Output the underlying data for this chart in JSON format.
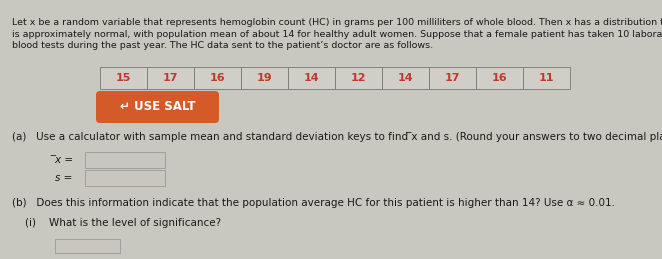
{
  "background_color": "#c8c8c0",
  "panel_color": "#d8d6ce",
  "text_color": "#1a1a1a",
  "paragraph_line1": "Let x be a random variable that represents hemoglobin count (HC) in grams per 100 milliliters of whole blood. Then x has a distribution that",
  "paragraph_line2": "is approximately normal, with population mean of about 14 for healthy adult women. Suppose that a female patient has taken 10 laboratory",
  "paragraph_line3": "blood tests during the past year. The HC data sent to the patient’s doctor are as follows.",
  "data_values": [
    "15",
    "17",
    "16",
    "19",
    "14",
    "12",
    "14",
    "17",
    "16",
    "11"
  ],
  "cell_color": "#d0cec6",
  "cell_border": "#777777",
  "data_text_color": "#c0392b",
  "use_salt_label": "↵ USE SALT",
  "use_salt_bg": "#d45a2a",
  "use_salt_text_color": "#ffffff",
  "part_a_text": "(a)   Use a calculator with sample mean and standard deviation keys to find ̅x and s. (Round your answers to two decimal places.)",
  "xbar_label": "̅x =",
  "s_label": "s =",
  "part_b_text": "(b)   Does this information indicate that the population average HC for this patient is higher than 14? Use α ≈ 0.01.",
  "part_i_text": "(i)    What is the level of significance?",
  "input_box_color": "#c8c6be",
  "input_box_border": "#999999",
  "font_size_para": 6.8,
  "font_size_data": 8.0,
  "font_size_labels": 7.5,
  "font_size_salt": 8.5
}
